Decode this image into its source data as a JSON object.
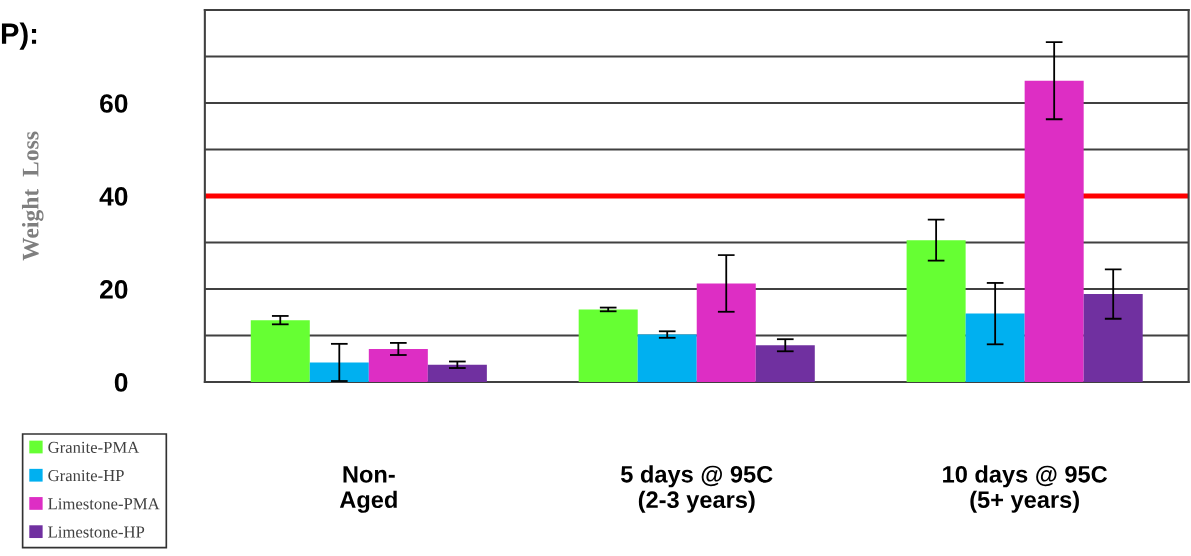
{
  "chart_data": {
    "type": "bar",
    "ylabel": "Weight  Loss",
    "annotations": [
      "P):"
    ],
    "categories": [
      "Non-\nAged",
      "5 days @ 95C\n(2-3 years)",
      "10 days @ 95C\n(5+ years)"
    ],
    "series": [
      {
        "name": "Granite-PMA",
        "color": "#66ff33",
        "values": [
          13.3,
          15.6,
          30.5
        ],
        "errors": [
          0.9,
          0.4,
          4.4
        ]
      },
      {
        "name": "Granite-HP",
        "color": "#00b0f0",
        "values": [
          4.2,
          10.2,
          14.7
        ],
        "errors": [
          4,
          0.7,
          6.6
        ]
      },
      {
        "name": "Limestone-PMA",
        "color": "#dd2ec4",
        "values": [
          7.1,
          21.2,
          64.8
        ],
        "errors": [
          1.3,
          6.1,
          8.3
        ]
      },
      {
        "name": "Limestone-HP",
        "color": "#7030a0",
        "values": [
          3.7,
          7.9,
          18.9
        ],
        "errors": [
          0.7,
          1.3,
          5.3
        ]
      }
    ],
    "ylim": [
      0,
      80
    ],
    "yticks": [
      0,
      {
        "value": 10,
        "label": null
      },
      20,
      {
        "value": 30,
        "label": null
      },
      40,
      {
        "value": 50,
        "label": null
      },
      60,
      {
        "value": 70,
        "label": null
      },
      {
        "value": 80,
        "label": null
      }
    ],
    "ref_lines": [
      {
        "axis": "y",
        "value": 40,
        "color": "#ff0000"
      }
    ],
    "grid": "y",
    "legend": "bottom left"
  }
}
